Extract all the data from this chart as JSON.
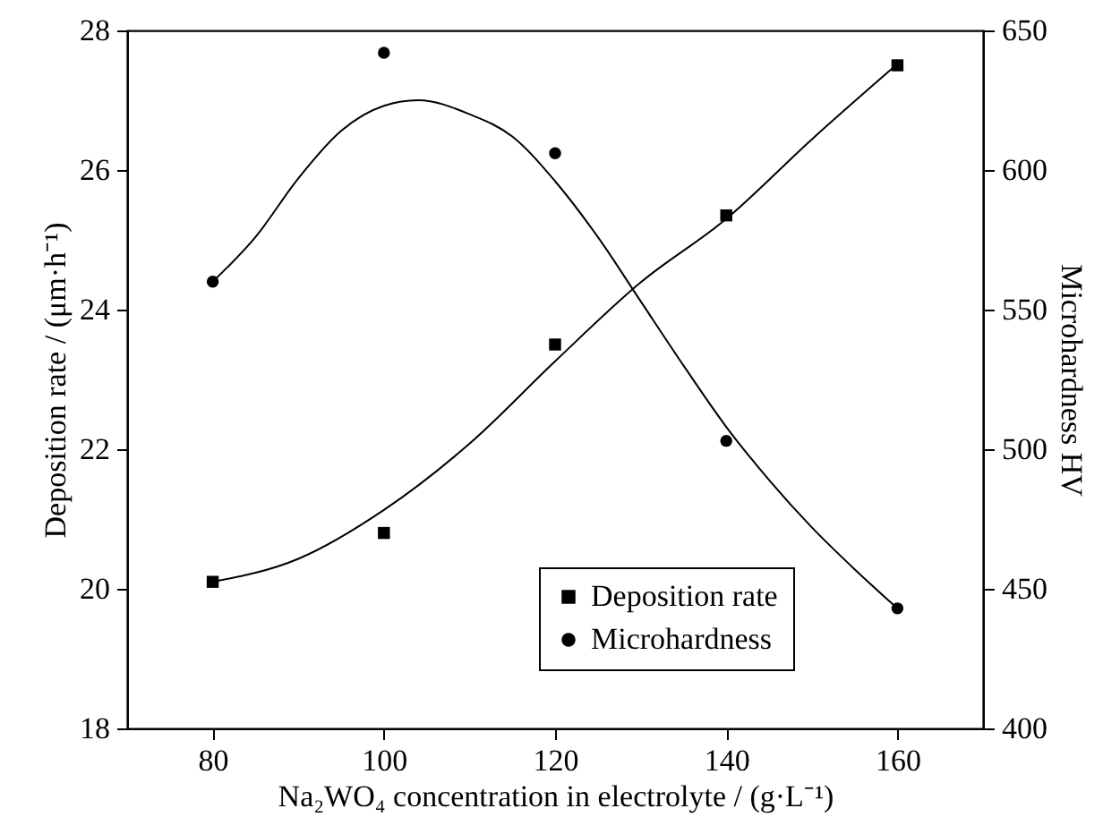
{
  "chart_data": {
    "type": "scatter",
    "xlabel": "Na₂WO₄ concentration in electrolyte / (g·L⁻¹)",
    "ylabel": "Deposition rate / (μm·h⁻¹)",
    "y2label": "Microhardness  HV",
    "xlim": [
      70,
      170
    ],
    "xticks": [
      80,
      100,
      120,
      140,
      160
    ],
    "ylim": [
      18,
      28
    ],
    "yticks": [
      18,
      20,
      22,
      24,
      26,
      28
    ],
    "y2lim": [
      400,
      650
    ],
    "y2ticks": [
      400,
      450,
      500,
      550,
      600,
      650
    ],
    "x": [
      80,
      100,
      120,
      140,
      160
    ],
    "grid": false,
    "legend": "bottom",
    "series": [
      {
        "name": "Deposition rate",
        "color": "#000000",
        "marker": "square",
        "values": [
          20.1,
          20.8,
          23.5,
          25.35,
          27.5
        ]
      },
      {
        "name": "Microhardness",
        "color": "#000000",
        "marker": "circle",
        "axis": "y2",
        "values": [
          560,
          642,
          606,
          503,
          443
        ]
      },
      {
        "type": "line",
        "color": "#000000",
        "x": [
          80,
          90,
          100,
          110,
          120,
          130,
          140,
          150,
          160
        ],
        "values": [
          20.1,
          20.43,
          21.13,
          22.08,
          23.26,
          24.39,
          25.3,
          26.44,
          27.52
        ]
      },
      {
        "type": "line",
        "color": "#000000",
        "axis": "y2",
        "x": [
          80,
          85,
          90,
          95,
          100,
          104,
          110,
          115,
          120,
          125,
          130,
          135,
          140,
          145,
          150,
          155,
          160
        ],
        "values": [
          560,
          576,
          597,
          614,
          623,
          625,
          620,
          612,
          596,
          576,
          553,
          530,
          508,
          489,
          472,
          457,
          443
        ]
      }
    ]
  }
}
